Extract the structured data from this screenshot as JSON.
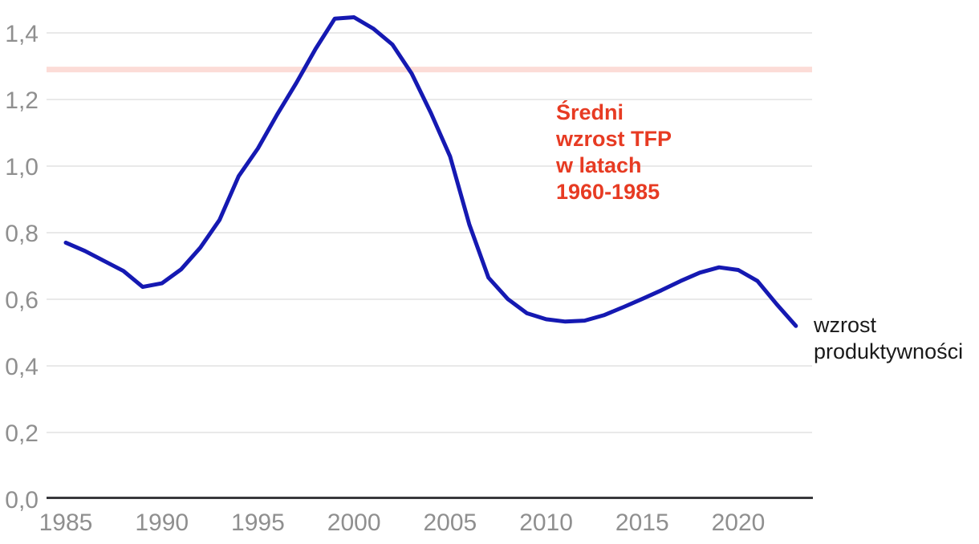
{
  "chart_data": {
    "type": "line",
    "title": "",
    "xlabel": "",
    "ylabel": "",
    "grid": true,
    "legend_position": "none",
    "x_tick_labels": [
      "1985",
      "1990",
      "1995",
      "2000",
      "2005",
      "2010",
      "2015",
      "2020"
    ],
    "x_tick_years": [
      1985,
      1990,
      1995,
      2000,
      2005,
      2010,
      2015,
      2020
    ],
    "y_tick_labels": [
      "0,0",
      "0,2",
      "0,4",
      "0,6",
      "0,8",
      "1,0",
      "1,2",
      "1,4"
    ],
    "y_tick_values": [
      0.0,
      0.2,
      0.4,
      0.6,
      0.8,
      1.0,
      1.2,
      1.4
    ],
    "xlim": [
      1984,
      2024
    ],
    "ylim": [
      0.0,
      1.45
    ],
    "series": [
      {
        "name": "wzrost produktywności",
        "color": "#1519b2",
        "x": [
          1985,
          1986,
          1987,
          1988,
          1989,
          1990,
          1991,
          1992,
          1993,
          1994,
          1995,
          1996,
          1997,
          1998,
          1999,
          2000,
          2001,
          2002,
          2003,
          2004,
          2005,
          2006,
          2007,
          2008,
          2009,
          2010,
          2011,
          2012,
          2013,
          2014,
          2015,
          2016,
          2017,
          2018,
          2019,
          2020,
          2021,
          2022,
          2023
        ],
        "values": [
          0.77,
          0.745,
          0.715,
          0.685,
          0.637,
          0.648,
          0.69,
          0.755,
          0.838,
          0.97,
          1.053,
          1.155,
          1.25,
          1.352,
          1.443,
          1.447,
          1.413,
          1.365,
          1.278,
          1.16,
          1.029,
          0.825,
          0.665,
          0.601,
          0.558,
          0.54,
          0.533,
          0.536,
          0.552,
          0.576,
          0.601,
          0.627,
          0.655,
          0.68,
          0.696,
          0.688,
          0.655,
          0.585,
          0.52
        ]
      }
    ],
    "reference_line": {
      "value": 1.29,
      "color": "#fcdcd7",
      "label": "Średni wzrost TFP w latach 1960-1985"
    }
  },
  "annotations": {
    "reference_label": {
      "text": "Średni\nwzrost TFP\nw latach\n1960-1985",
      "color": "#e73b23"
    },
    "series_label": {
      "text": "wzrost\nproduktywności",
      "color": "#1a1a1a"
    }
  },
  "colors": {
    "line": "#1519b2",
    "reference_band": "#fcdcd7",
    "gridline": "#e9e9e9",
    "axis": "#38383c",
    "tick_text": "#8f8f8f",
    "annotation_red": "#e73b23",
    "annotation_black": "#1a1a1a",
    "background": "#ffffff"
  }
}
